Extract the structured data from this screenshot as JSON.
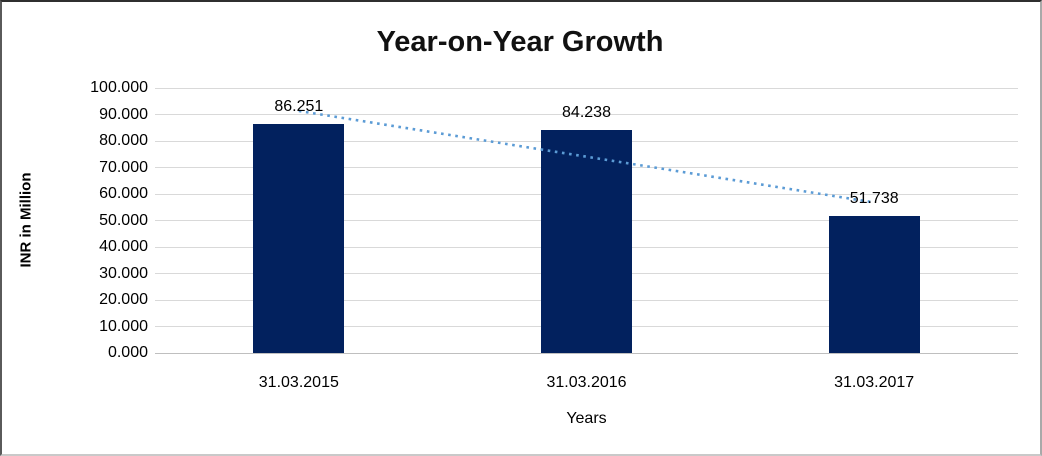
{
  "chart_data": {
    "type": "bar",
    "title": "Year-on-Year Growth",
    "xlabel": "Years",
    "ylabel": "INR in Million",
    "categories": [
      "31.03.2015",
      "31.03.2016",
      "31.03.2017"
    ],
    "values": [
      86.251,
      84.238,
      51.738
    ],
    "data_labels": [
      "86.251",
      "84.238",
      "51.738"
    ],
    "ylim": [
      0,
      100
    ],
    "ytick_step": 10,
    "ytick_labels": [
      "0.000",
      "10.000",
      "20.000",
      "30.000",
      "40.000",
      "50.000",
      "60.000",
      "70.000",
      "80.000",
      "90.000",
      "100.000"
    ],
    "grid": true,
    "legend_position": "none",
    "trendline": {
      "kind": "linear",
      "style": "dotted",
      "color": "#5b9bd5"
    },
    "colors": {
      "bar": "#02215e",
      "gridline": "#d9d9d9",
      "text": "#000000",
      "trendline": "#5b9bd5"
    }
  }
}
